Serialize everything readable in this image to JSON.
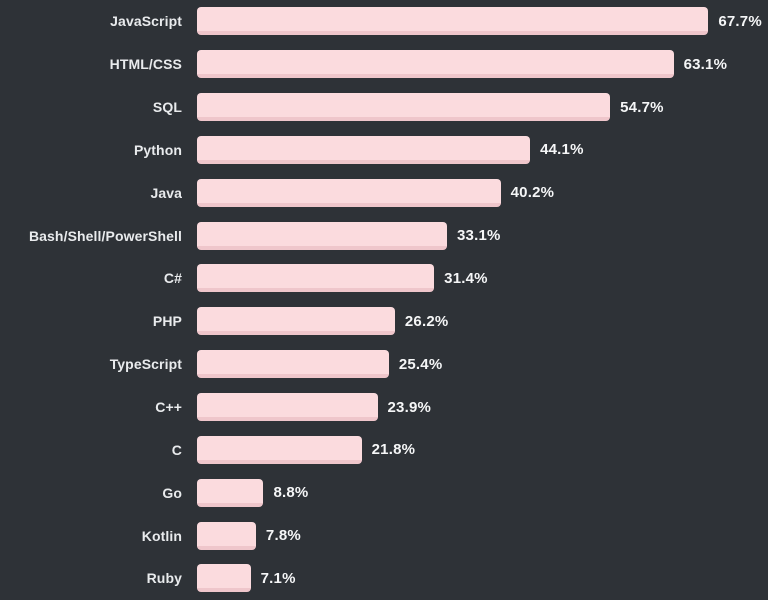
{
  "chart_data": {
    "type": "bar",
    "orientation": "horizontal",
    "title": "",
    "xlabel": "",
    "ylabel": "",
    "categories": [
      "JavaScript",
      "HTML/CSS",
      "SQL",
      "Python",
      "Java",
      "Bash/Shell/PowerShell",
      "C#",
      "PHP",
      "TypeScript",
      "C++",
      "C",
      "Go",
      "Kotlin",
      "Ruby"
    ],
    "values": [
      67.7,
      63.1,
      54.7,
      44.1,
      40.2,
      33.1,
      31.4,
      26.2,
      25.4,
      23.9,
      21.8,
      8.8,
      7.8,
      7.1
    ],
    "value_labels": [
      "67.7%",
      "63.1%",
      "54.7%",
      "44.1%",
      "40.2%",
      "33.1%",
      "31.4%",
      "26.2%",
      "25.4%",
      "23.9%",
      "21.8%",
      "8.8%",
      "7.8%",
      "7.1%"
    ],
    "xlim": [
      0,
      75.6
    ],
    "grid": false,
    "legend": false,
    "colors": {
      "background": "#2e3237",
      "bar_fill": "#fbdbde",
      "bar_bottom_edge": "#efc6cb",
      "label_text": "#e9ebed",
      "value_text": "#f5f6f7"
    }
  }
}
